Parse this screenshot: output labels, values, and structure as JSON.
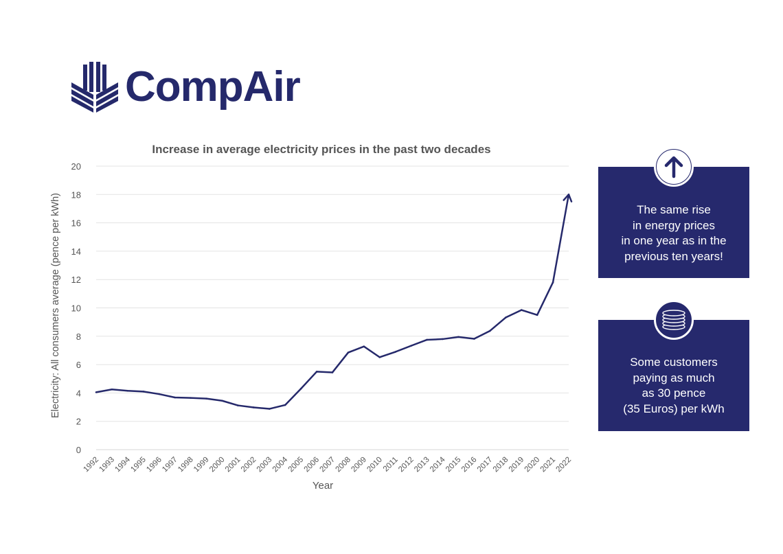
{
  "brand": {
    "name": "CompAir",
    "color": "#25296b"
  },
  "chart_data": {
    "type": "line",
    "title": "Increase in average electricity prices in the past two decades",
    "xlabel": "Year",
    "ylabel": "Electricity: All consumers average (pence per kWh)",
    "ylim": [
      0,
      20
    ],
    "yticks": [
      0,
      2,
      4,
      6,
      8,
      10,
      12,
      14,
      16,
      18,
      20
    ],
    "grid": true,
    "line_color": "#25296b",
    "end_marker": "arrow",
    "x": [
      "1992",
      "1993",
      "1994",
      "1995",
      "1996",
      "1997",
      "1998",
      "1999",
      "2000",
      "2001",
      "2002",
      "2003",
      "2004",
      "2005",
      "2006",
      "2007",
      "2008",
      "2009",
      "2010",
      "2011",
      "2012",
      "2013",
      "2014",
      "2015",
      "2016",
      "2017",
      "2018",
      "2019",
      "2020",
      "2021",
      "2022"
    ],
    "series": [
      {
        "values": [
          4.05,
          4.25,
          4.15,
          4.1,
          3.92,
          3.68,
          3.65,
          3.6,
          3.45,
          3.12,
          2.98,
          2.88,
          3.15,
          4.3,
          5.5,
          5.45,
          6.85,
          7.28,
          6.52,
          6.9,
          7.33,
          7.75,
          7.8,
          7.95,
          7.82,
          8.38,
          9.32,
          9.85,
          9.5,
          11.8,
          18.0
        ]
      }
    ]
  },
  "callouts": [
    {
      "icon": "arrow-up-icon",
      "lines": [
        "The same rise",
        "in energy prices",
        "in one year as in the",
        "previous ten years!"
      ]
    },
    {
      "icon": "coins-icon",
      "lines": [
        "Some customers",
        "paying as much",
        "as 30 pence",
        "(35 Euros) per kWh"
      ]
    }
  ]
}
